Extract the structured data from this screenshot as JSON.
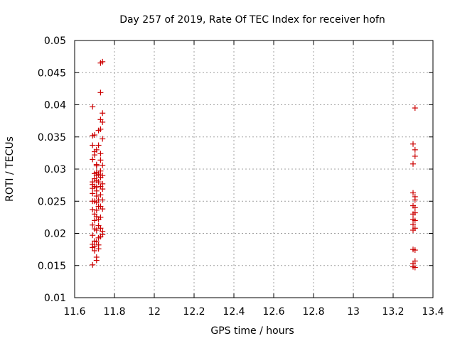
{
  "chart_data": {
    "type": "scatter",
    "title": "Day 257 of 2019, Rate Of TEC Index for receiver hofn",
    "xlabel": "GPS time / hours",
    "ylabel": "ROTI / TECUs",
    "xlim": [
      11.6,
      13.4
    ],
    "ylim": [
      0.01,
      0.05
    ],
    "xticks": [
      11.6,
      11.8,
      12.0,
      12.2,
      12.4,
      12.6,
      12.8,
      13.0,
      13.2,
      13.4
    ],
    "xtick_labels": [
      "11.6",
      "11.8",
      "12",
      "12.2",
      "12.4",
      "12.6",
      "12.8",
      "13",
      "13.2",
      "13.4"
    ],
    "yticks": [
      0.01,
      0.015,
      0.02,
      0.025,
      0.03,
      0.035,
      0.04,
      0.045,
      0.05
    ],
    "ytick_labels": [
      "0.01",
      "0.015",
      "0.02",
      "0.025",
      "0.03",
      "0.035",
      "0.04",
      "0.045",
      "0.05"
    ],
    "grid": true,
    "marker": "+",
    "color": "#cc0000",
    "series": [
      {
        "name": "ROTI",
        "x": [
          11.69,
          11.69,
          11.69,
          11.69,
          11.69,
          11.69,
          11.69,
          11.69,
          11.69,
          11.69,
          11.69,
          11.69,
          11.69,
          11.69,
          11.69,
          11.7,
          11.7,
          11.7,
          11.7,
          11.7,
          11.7,
          11.7,
          11.7,
          11.7,
          11.7,
          11.7,
          11.7,
          11.7,
          11.71,
          11.71,
          11.71,
          11.71,
          11.71,
          11.71,
          11.71,
          11.71,
          11.71,
          11.71,
          11.71,
          11.71,
          11.71,
          11.71,
          11.71,
          11.71,
          11.72,
          11.72,
          11.72,
          11.72,
          11.72,
          11.72,
          11.72,
          11.72,
          11.72,
          11.72,
          11.72,
          11.73,
          11.73,
          11.73,
          11.73,
          11.73,
          11.73,
          11.73,
          11.73,
          11.73,
          11.73,
          11.73,
          11.73,
          11.73,
          11.73,
          11.74,
          11.74,
          11.74,
          11.74,
          11.74,
          11.74,
          11.74,
          11.74,
          11.74,
          11.74,
          11.74,
          11.74,
          13.3,
          13.3,
          13.3,
          13.3,
          13.3,
          13.3,
          13.3,
          13.3,
          13.3,
          13.3,
          13.3,
          13.31,
          13.31,
          13.31,
          13.31,
          13.31,
          13.31,
          13.31,
          13.31,
          13.31,
          13.31,
          13.31,
          13.31
        ],
        "y": [
          0.0397,
          0.0352,
          0.0337,
          0.0315,
          0.028,
          0.0276,
          0.027,
          0.0262,
          0.025,
          0.0237,
          0.0213,
          0.0197,
          0.0183,
          0.0178,
          0.0151,
          0.0353,
          0.0327,
          0.0322,
          0.0293,
          0.0285,
          0.0273,
          0.025,
          0.023,
          0.022,
          0.0207,
          0.0188,
          0.018,
          0.0173,
          0.033,
          0.0307,
          0.0305,
          0.0295,
          0.029,
          0.0282,
          0.0272,
          0.0266,
          0.0258,
          0.0248,
          0.0236,
          0.0226,
          0.0205,
          0.0187,
          0.0163,
          0.0158,
          0.036,
          0.0337,
          0.0292,
          0.028,
          0.0252,
          0.0242,
          0.0222,
          0.0212,
          0.0193,
          0.0182,
          0.0176,
          0.0465,
          0.0419,
          0.0377,
          0.0362,
          0.0324,
          0.0314,
          0.0297,
          0.0287,
          0.0273,
          0.026,
          0.0242,
          0.0225,
          0.0208,
          0.0195,
          0.0467,
          0.0387,
          0.0373,
          0.0347,
          0.0306,
          0.029,
          0.0277,
          0.0269,
          0.0252,
          0.0238,
          0.0203,
          0.0198,
          0.0339,
          0.0308,
          0.0263,
          0.0243,
          0.023,
          0.0222,
          0.0214,
          0.0205,
          0.0175,
          0.0153,
          0.0148,
          0.0395,
          0.033,
          0.032,
          0.0257,
          0.0252,
          0.024,
          0.0232,
          0.022,
          0.0208,
          0.0174,
          0.0157,
          0.0147
        ]
      }
    ]
  }
}
